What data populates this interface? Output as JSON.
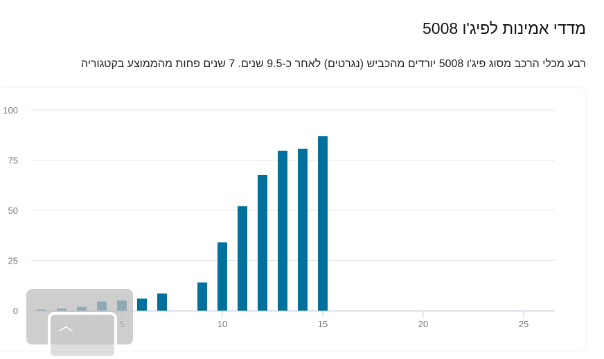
{
  "header": {
    "title": "מדדי אמינות לפיג'ו 5008",
    "subtitle": "רבע מכלי הרכב מסוג פיג'ו 5008 יורדים מהכביש (נגרטים) לאחר כ-9.5 שנים. 7 שנים פחות מהממוצע בקטגוריה"
  },
  "scroll_top": {
    "icon": "chevron-up-icon"
  },
  "chart_data": {
    "type": "bar",
    "x": [
      1,
      2,
      3,
      4,
      5,
      6,
      7,
      9,
      10,
      11,
      12,
      13,
      14,
      15
    ],
    "values": [
      0.5,
      1,
      1.8,
      4.5,
      5,
      6,
      8.5,
      14,
      34,
      52,
      67.6,
      79.7,
      80.7,
      86.9
    ],
    "xlim": [
      0,
      26.5
    ],
    "ylim": [
      0,
      100
    ],
    "xticks": [
      "5",
      "10",
      "15",
      "20",
      "25"
    ],
    "yticks": [
      "0",
      "25",
      "50",
      "75",
      "100"
    ],
    "grid": true,
    "color": "#00709c"
  }
}
